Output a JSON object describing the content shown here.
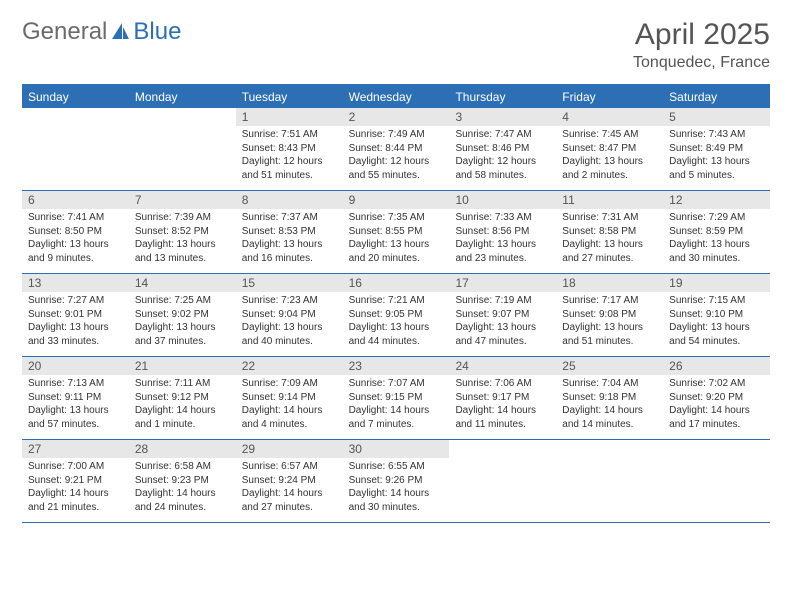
{
  "logo": {
    "textA": "General",
    "textB": "Blue",
    "color": "#2d6fb5",
    "grayColor": "#6b6b6b"
  },
  "title": {
    "month": "April 2025",
    "location": "Tonquedec, France"
  },
  "colors": {
    "headerBg": "#2d6fb5",
    "headerText": "#ffffff",
    "dayNumBg": "#e7e7e7",
    "border": "#2d6fb5",
    "bodyText": "#333333"
  },
  "dayHeaders": [
    "Sunday",
    "Monday",
    "Tuesday",
    "Wednesday",
    "Thursday",
    "Friday",
    "Saturday"
  ],
  "weeks": [
    [
      {
        "empty": true
      },
      {
        "empty": true
      },
      {
        "num": "1",
        "sunrise": "Sunrise: 7:51 AM",
        "sunset": "Sunset: 8:43 PM",
        "daylight": "Daylight: 12 hours and 51 minutes."
      },
      {
        "num": "2",
        "sunrise": "Sunrise: 7:49 AM",
        "sunset": "Sunset: 8:44 PM",
        "daylight": "Daylight: 12 hours and 55 minutes."
      },
      {
        "num": "3",
        "sunrise": "Sunrise: 7:47 AM",
        "sunset": "Sunset: 8:46 PM",
        "daylight": "Daylight: 12 hours and 58 minutes."
      },
      {
        "num": "4",
        "sunrise": "Sunrise: 7:45 AM",
        "sunset": "Sunset: 8:47 PM",
        "daylight": "Daylight: 13 hours and 2 minutes."
      },
      {
        "num": "5",
        "sunrise": "Sunrise: 7:43 AM",
        "sunset": "Sunset: 8:49 PM",
        "daylight": "Daylight: 13 hours and 5 minutes."
      }
    ],
    [
      {
        "num": "6",
        "sunrise": "Sunrise: 7:41 AM",
        "sunset": "Sunset: 8:50 PM",
        "daylight": "Daylight: 13 hours and 9 minutes."
      },
      {
        "num": "7",
        "sunrise": "Sunrise: 7:39 AM",
        "sunset": "Sunset: 8:52 PM",
        "daylight": "Daylight: 13 hours and 13 minutes."
      },
      {
        "num": "8",
        "sunrise": "Sunrise: 7:37 AM",
        "sunset": "Sunset: 8:53 PM",
        "daylight": "Daylight: 13 hours and 16 minutes."
      },
      {
        "num": "9",
        "sunrise": "Sunrise: 7:35 AM",
        "sunset": "Sunset: 8:55 PM",
        "daylight": "Daylight: 13 hours and 20 minutes."
      },
      {
        "num": "10",
        "sunrise": "Sunrise: 7:33 AM",
        "sunset": "Sunset: 8:56 PM",
        "daylight": "Daylight: 13 hours and 23 minutes."
      },
      {
        "num": "11",
        "sunrise": "Sunrise: 7:31 AM",
        "sunset": "Sunset: 8:58 PM",
        "daylight": "Daylight: 13 hours and 27 minutes."
      },
      {
        "num": "12",
        "sunrise": "Sunrise: 7:29 AM",
        "sunset": "Sunset: 8:59 PM",
        "daylight": "Daylight: 13 hours and 30 minutes."
      }
    ],
    [
      {
        "num": "13",
        "sunrise": "Sunrise: 7:27 AM",
        "sunset": "Sunset: 9:01 PM",
        "daylight": "Daylight: 13 hours and 33 minutes."
      },
      {
        "num": "14",
        "sunrise": "Sunrise: 7:25 AM",
        "sunset": "Sunset: 9:02 PM",
        "daylight": "Daylight: 13 hours and 37 minutes."
      },
      {
        "num": "15",
        "sunrise": "Sunrise: 7:23 AM",
        "sunset": "Sunset: 9:04 PM",
        "daylight": "Daylight: 13 hours and 40 minutes."
      },
      {
        "num": "16",
        "sunrise": "Sunrise: 7:21 AM",
        "sunset": "Sunset: 9:05 PM",
        "daylight": "Daylight: 13 hours and 44 minutes."
      },
      {
        "num": "17",
        "sunrise": "Sunrise: 7:19 AM",
        "sunset": "Sunset: 9:07 PM",
        "daylight": "Daylight: 13 hours and 47 minutes."
      },
      {
        "num": "18",
        "sunrise": "Sunrise: 7:17 AM",
        "sunset": "Sunset: 9:08 PM",
        "daylight": "Daylight: 13 hours and 51 minutes."
      },
      {
        "num": "19",
        "sunrise": "Sunrise: 7:15 AM",
        "sunset": "Sunset: 9:10 PM",
        "daylight": "Daylight: 13 hours and 54 minutes."
      }
    ],
    [
      {
        "num": "20",
        "sunrise": "Sunrise: 7:13 AM",
        "sunset": "Sunset: 9:11 PM",
        "daylight": "Daylight: 13 hours and 57 minutes."
      },
      {
        "num": "21",
        "sunrise": "Sunrise: 7:11 AM",
        "sunset": "Sunset: 9:12 PM",
        "daylight": "Daylight: 14 hours and 1 minute."
      },
      {
        "num": "22",
        "sunrise": "Sunrise: 7:09 AM",
        "sunset": "Sunset: 9:14 PM",
        "daylight": "Daylight: 14 hours and 4 minutes."
      },
      {
        "num": "23",
        "sunrise": "Sunrise: 7:07 AM",
        "sunset": "Sunset: 9:15 PM",
        "daylight": "Daylight: 14 hours and 7 minutes."
      },
      {
        "num": "24",
        "sunrise": "Sunrise: 7:06 AM",
        "sunset": "Sunset: 9:17 PM",
        "daylight": "Daylight: 14 hours and 11 minutes."
      },
      {
        "num": "25",
        "sunrise": "Sunrise: 7:04 AM",
        "sunset": "Sunset: 9:18 PM",
        "daylight": "Daylight: 14 hours and 14 minutes."
      },
      {
        "num": "26",
        "sunrise": "Sunrise: 7:02 AM",
        "sunset": "Sunset: 9:20 PM",
        "daylight": "Daylight: 14 hours and 17 minutes."
      }
    ],
    [
      {
        "num": "27",
        "sunrise": "Sunrise: 7:00 AM",
        "sunset": "Sunset: 9:21 PM",
        "daylight": "Daylight: 14 hours and 21 minutes."
      },
      {
        "num": "28",
        "sunrise": "Sunrise: 6:58 AM",
        "sunset": "Sunset: 9:23 PM",
        "daylight": "Daylight: 14 hours and 24 minutes."
      },
      {
        "num": "29",
        "sunrise": "Sunrise: 6:57 AM",
        "sunset": "Sunset: 9:24 PM",
        "daylight": "Daylight: 14 hours and 27 minutes."
      },
      {
        "num": "30",
        "sunrise": "Sunrise: 6:55 AM",
        "sunset": "Sunset: 9:26 PM",
        "daylight": "Daylight: 14 hours and 30 minutes."
      },
      {
        "empty": true
      },
      {
        "empty": true
      },
      {
        "empty": true
      }
    ]
  ]
}
